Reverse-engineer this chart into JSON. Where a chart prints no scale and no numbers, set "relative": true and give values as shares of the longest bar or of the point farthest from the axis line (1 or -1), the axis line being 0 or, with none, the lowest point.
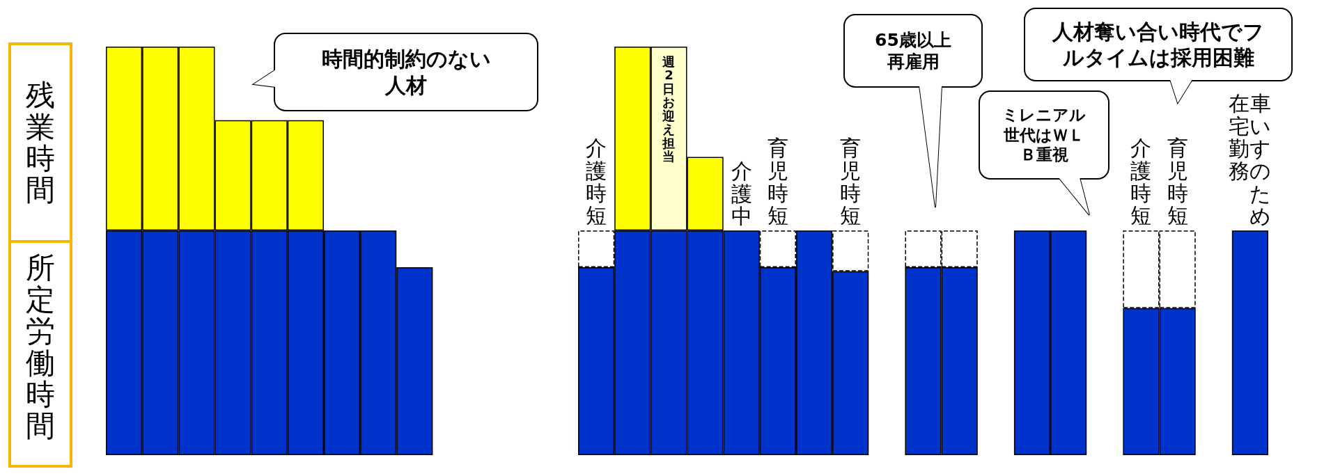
{
  "chart_data": {
    "type": "bar",
    "stacked": true,
    "relative": true,
    "legend": false,
    "categories": [
      null,
      null,
      null,
      null,
      null,
      null,
      null,
      null,
      null,
      null,
      null,
      null,
      null,
      "介護時短",
      null,
      "週2日お迎え担当",
      null,
      "介護中",
      "育児時短",
      null,
      "育児時短",
      null,
      null,
      null,
      null,
      null,
      null,
      null,
      "介護時短",
      "育児時短",
      null,
      "車いすのため在宅勤務"
    ],
    "series": [
      {
        "name": "所定労働時間",
        "color": "#0033cc",
        "values": [
          0.55,
          0.55,
          0.55,
          0.55,
          0.55,
          0.55,
          0.55,
          0.55,
          0.46,
          null,
          null,
          null,
          null,
          0.46,
          0.55,
          0.55,
          0.55,
          0.55,
          0.46,
          0.55,
          0.45,
          null,
          0.46,
          0.46,
          null,
          0.55,
          0.55,
          null,
          0.36,
          0.36,
          null,
          0.55
        ]
      },
      {
        "color": "#ffffff",
        "line_style": "dashed",
        "values": [
          null,
          null,
          null,
          null,
          null,
          null,
          null,
          null,
          null,
          null,
          null,
          null,
          null,
          0.09,
          null,
          null,
          null,
          null,
          0.09,
          null,
          0.1,
          null,
          0.09,
          0.09,
          null,
          null,
          null,
          null,
          0.19,
          0.19,
          null,
          null
        ]
      },
      {
        "name": "残業時間",
        "color": "#ffff00",
        "colors": [
          null,
          null,
          null,
          null,
          null,
          null,
          null,
          null,
          null,
          null,
          null,
          null,
          null,
          null,
          null,
          "#ffffcc",
          null,
          null,
          null,
          null,
          null,
          null,
          null,
          null,
          null,
          null,
          null,
          null,
          null,
          null,
          null,
          null
        ],
        "values": [
          0.45,
          0.45,
          0.45,
          0.27,
          0.27,
          0.27,
          null,
          null,
          null,
          null,
          null,
          null,
          null,
          null,
          0.45,
          0.45,
          0.18,
          null,
          null,
          null,
          null,
          null,
          null,
          null,
          null,
          null,
          null,
          null,
          null,
          null,
          null,
          null
        ]
      }
    ],
    "annotations": [
      "時間的制約のない人材",
      "65歳以上再雇用",
      "ミレニアル世代はＷＬＢ重視",
      "人材奪い合い時代でフルタイムは採用困難"
    ]
  }
}
